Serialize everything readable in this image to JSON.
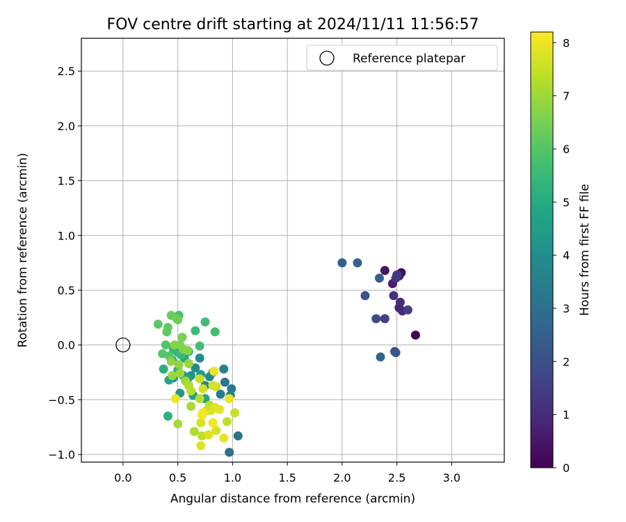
{
  "chart_data": {
    "type": "scatter",
    "title": "FOV centre drift starting at 2024/11/11 11:56:57",
    "xlabel": "Angular distance from reference (arcmin)",
    "ylabel": "Rotation from reference (arcmin)",
    "xlim": [
      -0.38,
      3.48
    ],
    "ylim": [
      -1.07,
      2.8
    ],
    "xticks": [
      0.0,
      0.5,
      1.0,
      1.5,
      2.0,
      2.5,
      3.0
    ],
    "xtick_labels": [
      "0.0",
      "0.5",
      "1.0",
      "1.5",
      "2.0",
      "2.5",
      "3.0"
    ],
    "yticks": [
      -1.0,
      -0.5,
      0.0,
      0.5,
      1.0,
      1.5,
      2.0,
      2.5
    ],
    "ytick_labels": [
      "−1.0",
      "−0.5",
      "0.0",
      "0.5",
      "1.0",
      "1.5",
      "2.0",
      "2.5"
    ],
    "grid": true,
    "legend": {
      "placement": "top-right",
      "entries": [
        "Reference platepar"
      ]
    },
    "reference_point": {
      "x": 0.0,
      "y": 0.0
    },
    "colorbar": {
      "label": "Hours from first FF file",
      "colormap": "viridis",
      "range": [
        0,
        8.2
      ],
      "ticks": [
        0,
        1,
        2,
        3,
        4,
        5,
        6,
        7,
        8
      ],
      "tick_labels": [
        "0",
        "1",
        "2",
        "3",
        "4",
        "5",
        "6",
        "7",
        "8"
      ]
    },
    "series": [
      {
        "points": [
          {
            "x": 2.67,
            "y": 0.09,
            "c": 0.1
          },
          {
            "x": 2.54,
            "y": 0.66,
            "c": 0.3
          },
          {
            "x": 2.39,
            "y": 0.68,
            "c": 0.5
          },
          {
            "x": 2.52,
            "y": 0.63,
            "c": 0.6
          },
          {
            "x": 2.46,
            "y": 0.56,
            "c": 0.7
          },
          {
            "x": 2.52,
            "y": 0.34,
            "c": 0.8
          },
          {
            "x": 2.55,
            "y": 0.31,
            "c": 0.9
          },
          {
            "x": 2.53,
            "y": 0.39,
            "c": 1.0
          },
          {
            "x": 2.47,
            "y": 0.45,
            "c": 1.1
          },
          {
            "x": 2.49,
            "y": 0.61,
            "c": 1.3
          },
          {
            "x": 2.5,
            "y": 0.64,
            "c": 1.4
          },
          {
            "x": 2.6,
            "y": 0.32,
            "c": 1.5
          },
          {
            "x": 2.39,
            "y": 0.24,
            "c": 1.6
          },
          {
            "x": 2.31,
            "y": 0.24,
            "c": 1.8
          },
          {
            "x": 2.48,
            "y": -0.06,
            "c": 1.9
          },
          {
            "x": 2.21,
            "y": 0.45,
            "c": 2.1
          },
          {
            "x": 2.49,
            "y": -0.07,
            "c": 2.2
          },
          {
            "x": 2.34,
            "y": 0.61,
            "c": 2.4
          },
          {
            "x": 2.0,
            "y": 0.75,
            "c": 2.5
          },
          {
            "x": 2.14,
            "y": 0.75,
            "c": 2.5
          },
          {
            "x": 2.35,
            "y": -0.11,
            "c": 2.7
          },
          {
            "x": 0.97,
            "y": -0.98,
            "c": 3.0
          },
          {
            "x": 1.05,
            "y": -0.83,
            "c": 3.1
          },
          {
            "x": 0.93,
            "y": -0.34,
            "c": 3.2
          },
          {
            "x": 0.99,
            "y": -0.4,
            "c": 3.3
          },
          {
            "x": 0.89,
            "y": -0.45,
            "c": 3.4
          },
          {
            "x": 0.98,
            "y": -0.46,
            "c": 3.5
          },
          {
            "x": 0.92,
            "y": -0.22,
            "c": 3.6
          },
          {
            "x": 0.75,
            "y": -0.37,
            "c": 3.7
          },
          {
            "x": 0.82,
            "y": -0.25,
            "c": 3.7
          },
          {
            "x": 0.79,
            "y": -0.29,
            "c": 3.8
          },
          {
            "x": 0.66,
            "y": -0.21,
            "c": 3.9
          },
          {
            "x": 0.7,
            "y": -0.12,
            "c": 4.0
          },
          {
            "x": 0.62,
            "y": -0.28,
            "c": 4.1
          },
          {
            "x": 0.55,
            "y": -0.28,
            "c": 4.2
          },
          {
            "x": 0.46,
            "y": -0.3,
            "c": 4.3
          },
          {
            "x": 0.52,
            "y": -0.44,
            "c": 4.4
          },
          {
            "x": 0.71,
            "y": -0.27,
            "c": 4.5
          },
          {
            "x": 0.64,
            "y": -0.46,
            "c": 4.6
          },
          {
            "x": 0.75,
            "y": -0.49,
            "c": 4.7
          },
          {
            "x": 0.59,
            "y": -0.31,
            "c": 4.7
          },
          {
            "x": 0.42,
            "y": -0.32,
            "c": 4.8
          },
          {
            "x": 0.45,
            "y": -0.14,
            "c": 4.9
          },
          {
            "x": 0.56,
            "y": -0.12,
            "c": 5.0
          },
          {
            "x": 0.37,
            "y": -0.22,
            "c": 5.1
          },
          {
            "x": 0.41,
            "y": -0.65,
            "c": 5.2
          },
          {
            "x": 0.5,
            "y": -0.23,
            "c": 5.2
          },
          {
            "x": 0.6,
            "y": -0.06,
            "c": 5.3
          },
          {
            "x": 0.46,
            "y": -0.04,
            "c": 5.4
          },
          {
            "x": 0.5,
            "y": -0.07,
            "c": 5.4
          },
          {
            "x": 0.53,
            "y": -0.09,
            "c": 5.5
          },
          {
            "x": 0.66,
            "y": 0.13,
            "c": 5.6
          },
          {
            "x": 0.75,
            "y": 0.21,
            "c": 5.6
          },
          {
            "x": 0.84,
            "y": 0.12,
            "c": 5.7
          },
          {
            "x": 0.7,
            "y": -0.01,
            "c": 5.7
          },
          {
            "x": 0.51,
            "y": 0.27,
            "c": 5.8
          },
          {
            "x": 0.39,
            "y": 0.0,
            "c": 5.9
          },
          {
            "x": 0.36,
            "y": -0.08,
            "c": 6.0
          },
          {
            "x": 0.42,
            "y": -0.1,
            "c": 6.0
          },
          {
            "x": 0.32,
            "y": 0.19,
            "c": 6.1
          },
          {
            "x": 0.4,
            "y": 0.12,
            "c": 6.2
          },
          {
            "x": 0.41,
            "y": 0.16,
            "c": 6.2
          },
          {
            "x": 0.44,
            "y": 0.27,
            "c": 6.3
          },
          {
            "x": 0.49,
            "y": 0.24,
            "c": 6.4
          },
          {
            "x": 0.5,
            "y": 0.23,
            "c": 6.4
          },
          {
            "x": 0.54,
            "y": 0.07,
            "c": 6.5
          },
          {
            "x": 0.52,
            "y": 0.0,
            "c": 6.6
          },
          {
            "x": 0.55,
            "y": -0.04,
            "c": 6.6
          },
          {
            "x": 0.47,
            "y": 0.0,
            "c": 6.7
          },
          {
            "x": 0.59,
            "y": -0.05,
            "c": 6.7
          },
          {
            "x": 0.44,
            "y": -0.15,
            "c": 6.8
          },
          {
            "x": 0.51,
            "y": -0.18,
            "c": 6.8
          },
          {
            "x": 0.6,
            "y": -0.17,
            "c": 6.9
          },
          {
            "x": 0.45,
            "y": -0.28,
            "c": 6.9
          },
          {
            "x": 0.52,
            "y": -0.26,
            "c": 7.0
          },
          {
            "x": 0.57,
            "y": -0.33,
            "c": 7.0
          },
          {
            "x": 0.62,
            "y": -0.56,
            "c": 7.1
          },
          {
            "x": 0.5,
            "y": -0.72,
            "c": 7.1
          },
          {
            "x": 0.65,
            "y": -0.79,
            "c": 7.2
          },
          {
            "x": 0.6,
            "y": -0.37,
            "c": 7.2
          },
          {
            "x": 0.62,
            "y": -0.42,
            "c": 7.3
          },
          {
            "x": 0.7,
            "y": -0.49,
            "c": 7.3
          },
          {
            "x": 0.72,
            "y": -0.83,
            "c": 7.4
          },
          {
            "x": 0.79,
            "y": -0.55,
            "c": 7.4
          },
          {
            "x": 0.95,
            "y": -0.7,
            "c": 7.4
          },
          {
            "x": 1.02,
            "y": -0.62,
            "c": 7.5
          },
          {
            "x": 0.7,
            "y": -0.31,
            "c": 7.5
          },
          {
            "x": 0.73,
            "y": -0.4,
            "c": 7.6
          },
          {
            "x": 0.76,
            "y": -0.6,
            "c": 7.6
          },
          {
            "x": 0.85,
            "y": -0.38,
            "c": 7.6
          },
          {
            "x": 0.82,
            "y": -0.37,
            "c": 7.7
          },
          {
            "x": 0.8,
            "y": -0.6,
            "c": 7.7
          },
          {
            "x": 0.71,
            "y": -0.71,
            "c": 7.7
          },
          {
            "x": 0.85,
            "y": -0.78,
            "c": 7.7
          },
          {
            "x": 0.71,
            "y": -0.92,
            "c": 7.8
          },
          {
            "x": 0.78,
            "y": -0.82,
            "c": 7.8
          },
          {
            "x": 0.84,
            "y": -0.57,
            "c": 7.8
          },
          {
            "x": 0.88,
            "y": -0.59,
            "c": 7.9
          },
          {
            "x": 0.92,
            "y": -0.85,
            "c": 7.9
          },
          {
            "x": 0.97,
            "y": -0.49,
            "c": 8.0
          },
          {
            "x": 0.83,
            "y": -0.24,
            "c": 8.0
          },
          {
            "x": 0.48,
            "y": -0.49,
            "c": 8.0
          },
          {
            "x": 0.72,
            "y": -0.64,
            "c": 8.1
          },
          {
            "x": 0.82,
            "y": -0.71,
            "c": 8.1
          },
          {
            "x": 0.73,
            "y": -0.62,
            "c": 8.1
          }
        ]
      }
    ]
  }
}
